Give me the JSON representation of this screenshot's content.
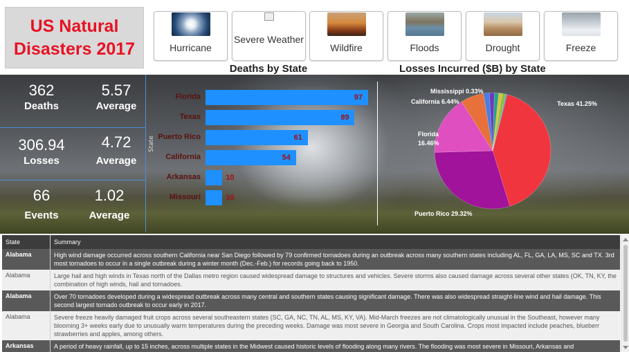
{
  "title": {
    "line1": "US Natural",
    "line2": "Disasters 2017"
  },
  "categories": [
    {
      "label": "Hurricane",
      "icon": "hurricane-satellite-icon",
      "color": "#2a4e7a"
    },
    {
      "label": "Severe Weather",
      "icon": "broken-image-icon",
      "color": "#eeeeee"
    },
    {
      "label": "Wildfire",
      "icon": "wildfire-icon",
      "color": "#a0522d"
    },
    {
      "label": "Floods",
      "icon": "flood-icon",
      "color": "#6b8fa6"
    },
    {
      "label": "Drought",
      "icon": "drought-icon",
      "color": "#b48a60"
    },
    {
      "label": "Freeze",
      "icon": "freeze-icon",
      "color": "#c9cfd6"
    }
  ],
  "headers": {
    "deaths": "Deaths by State",
    "losses": "Losses Incurred ($B) by State"
  },
  "kpis": {
    "deaths": {
      "value": "362",
      "label": "Deaths",
      "avg_value": "5.57",
      "avg_label": "Average"
    },
    "losses": {
      "value": "306.94",
      "label": "Losses",
      "avg_value": "4.72",
      "avg_label": "Average"
    },
    "events": {
      "value": "66",
      "label": "Events",
      "avg_value": "1.02",
      "avg_label": "Average"
    }
  },
  "chart_data": [
    {
      "type": "bar",
      "title": "Deaths by State",
      "ylabel": "State",
      "categories": [
        "Florida",
        "Texas",
        "Puerto Rico",
        "California",
        "Arkansas",
        "Missouri"
      ],
      "values": [
        97,
        89,
        61,
        54,
        10,
        10
      ],
      "xlim": [
        0,
        100
      ],
      "bar_color": "#1e90ff",
      "label_color": "#a01010"
    },
    {
      "type": "pie",
      "title": "Losses Incurred ($B) by State",
      "slices": [
        {
          "name": "Texas",
          "value": 41.25,
          "label": "Texas 41.25%",
          "color": "#f0353f"
        },
        {
          "name": "Puerto Rico",
          "value": 29.32,
          "label": "Puerto Rico 29.32%",
          "color": "#a0139a"
        },
        {
          "name": "Florida",
          "value": 16.46,
          "label": "Florida 16.46%",
          "color": "#e04fc0"
        },
        {
          "name": "California",
          "value": 6.44,
          "label": "California 6.44%",
          "color": "#e8703a"
        },
        {
          "name": "Other A",
          "value": 1.6,
          "label": "",
          "color": "#4a7de0"
        },
        {
          "name": "Other B",
          "value": 1.4,
          "label": "",
          "color": "#6a3bbd"
        },
        {
          "name": "Other C",
          "value": 1.2,
          "label": "",
          "color": "#2a9f8a"
        },
        {
          "name": "Other D",
          "value": 1.0,
          "label": "",
          "color": "#d8c23a"
        },
        {
          "name": "Other E",
          "value": 0.98,
          "label": "",
          "color": "#8fbf3a"
        },
        {
          "name": "Mississippi",
          "value": 0.33,
          "label": "Mississippi 0.33%",
          "color": "#3fa0d8"
        }
      ]
    }
  ],
  "table": {
    "headers": [
      "State",
      "Summary"
    ],
    "rows": [
      {
        "state": "Alabama",
        "summary": "High wind damage occurred across southern California near San Diego followed by 79 confirmed tornadoes during an outbreak across many southern states including AL, FL, GA, LA, MS, SC and TX. 3rd most tornadoes to occur in a single outbreak during a winter month (Dec.-Feb.) for records going back to 1950."
      },
      {
        "state": "Alabama",
        "summary": "Large hail and high winds in Texas north of the Dallas metro region caused widespread damage to structures and vehicles. Severe storms also caused damage across several other states (OK, TN, KY, the combination of high winds, hail and tornadoes."
      },
      {
        "state": "Alabama",
        "summary": "Over 70 tornadoes developed during a widespread outbreak across many central and southern states causing significant damage. There was also widespread straight-line wind and hail damage. This second largest tornado outbreak to occur early in 2017."
      },
      {
        "state": "Alabama",
        "summary": "Severe freeze heavily damaged fruit crops across several southeastern states (SC, GA, NC, TN, AL, MS, KY, VA). Mid-March freezes are not climatologically unusual in the Southeast, however many blooming 3+ weeks early due to unusually warm temperatures during the preceding weeks. Damage was most severe in Georgia and South Carolina. Crops most impacted include peaches, blueberr strawberries and apples, among others."
      },
      {
        "state": "Arkansas",
        "summary": "A period of heavy rainfall, up to 15 inches, across multiple states in the Midwest caused historic levels of flooding along many rivers. The flooding was most severe in Missouri, Arkansas and"
      }
    ]
  }
}
